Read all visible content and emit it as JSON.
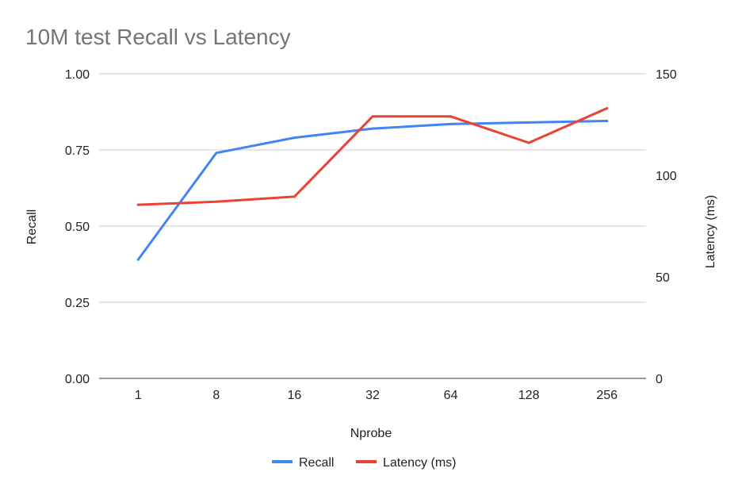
{
  "chart_data": {
    "type": "line",
    "title": "10M test Recall vs Latency",
    "xlabel": "Nprobe",
    "ylabel_left": "Recall",
    "ylabel_right": "Latency (ms)",
    "categories": [
      "1",
      "8",
      "16",
      "32",
      "64",
      "128",
      "256"
    ],
    "y_left": {
      "range": [
        0,
        1
      ],
      "ticks": [
        "0.00",
        "0.25",
        "0.50",
        "0.75",
        "1.00"
      ]
    },
    "y_right": {
      "range": [
        0,
        150
      ],
      "ticks": [
        "0",
        "50",
        "100",
        "150"
      ]
    },
    "series": [
      {
        "name": "Recall",
        "axis": "left",
        "color": "#4285f4",
        "values": [
          0.39,
          0.74,
          0.79,
          0.82,
          0.835,
          0.84,
          0.845
        ]
      },
      {
        "name": "Latency (ms)",
        "axis": "right",
        "color": "#ea4335",
        "values": [
          85.5,
          87,
          89.5,
          129,
          129,
          116,
          133
        ]
      }
    ],
    "grid": true,
    "legend": "bottom"
  }
}
